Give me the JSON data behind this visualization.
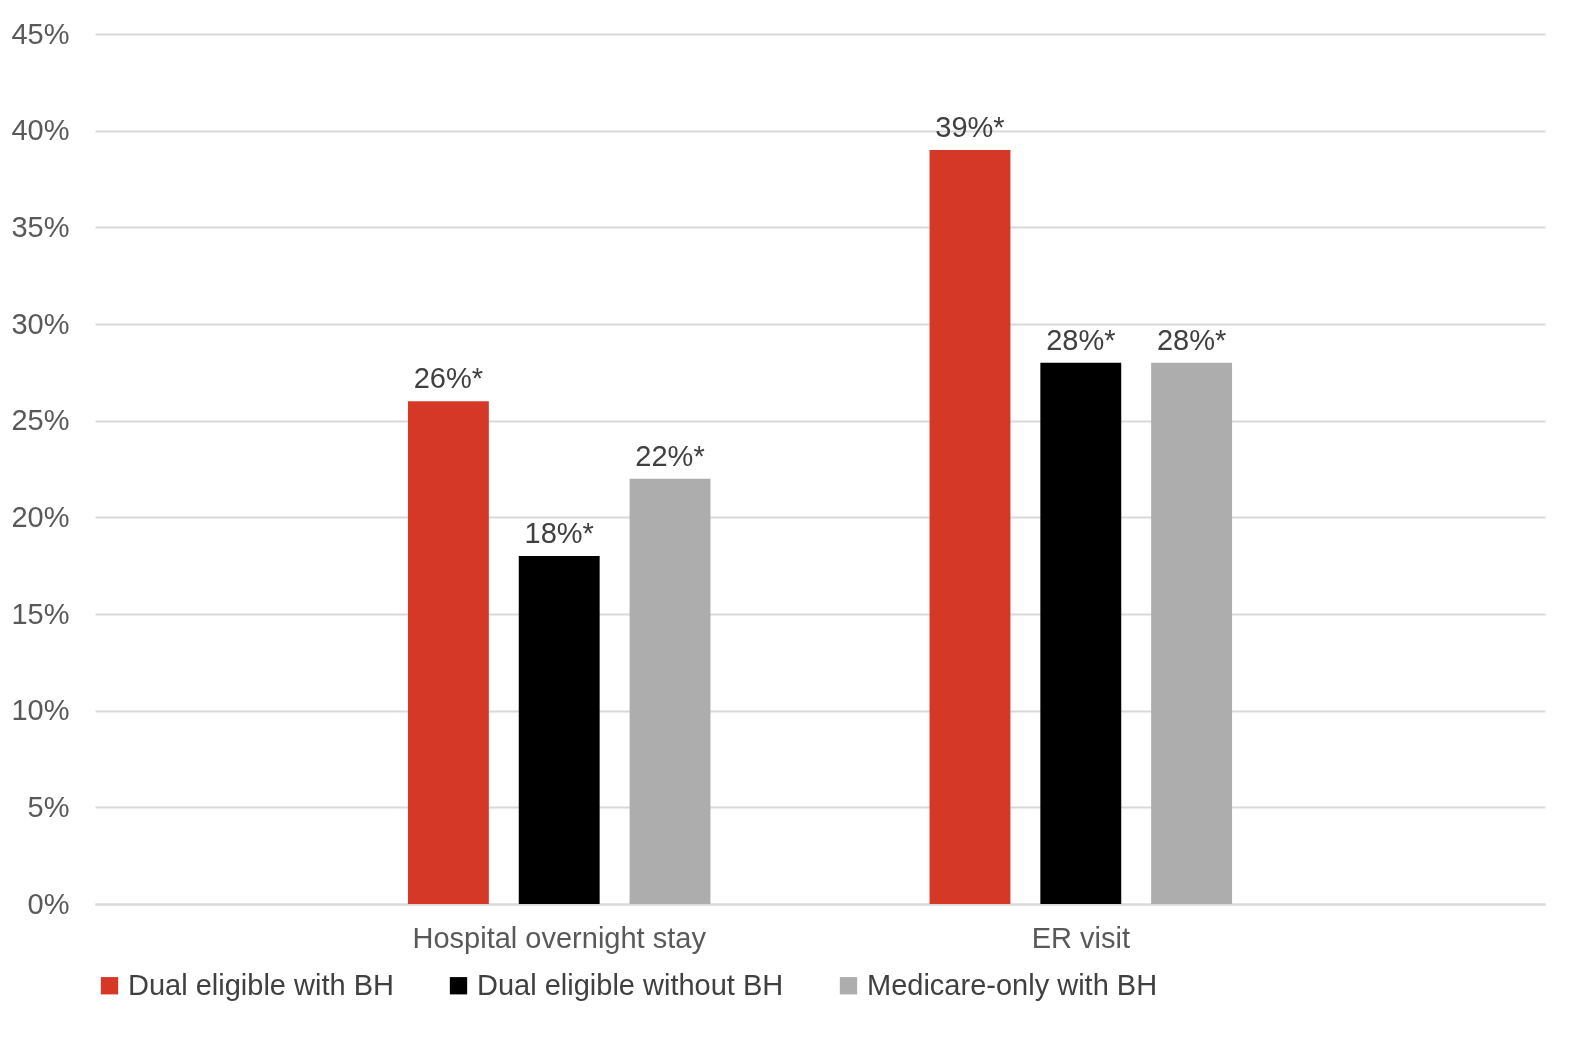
{
  "chart_data": {
    "type": "bar",
    "categories": [
      "Hospital overnight stay",
      "ER visit"
    ],
    "series": [
      {
        "name": "Dual eligible with BH",
        "color": "#d63827",
        "values": [
          26,
          39
        ],
        "value_labels": [
          "26%*",
          "39%*"
        ]
      },
      {
        "name": "Dual eligible without BH",
        "color": "#000000",
        "values": [
          18,
          28
        ],
        "value_labels": [
          "18%*",
          "28%*"
        ]
      },
      {
        "name": "Medicare-only with BH",
        "color": "#adadad",
        "values": [
          22,
          28
        ],
        "value_labels": [
          "22%*",
          "28%*"
        ]
      }
    ],
    "ylim": [
      0,
      45
    ],
    "yticks": [
      {
        "value": 0,
        "label": "0%"
      },
      {
        "value": 5,
        "label": "5%"
      },
      {
        "value": 10,
        "label": "10%"
      },
      {
        "value": 15,
        "label": "15%"
      },
      {
        "value": 20,
        "label": "20%"
      },
      {
        "value": 25,
        "label": "25%"
      },
      {
        "value": 30,
        "label": "30%"
      },
      {
        "value": 35,
        "label": "35%"
      },
      {
        "value": 40,
        "label": "40%"
      },
      {
        "value": 45,
        "label": "45%"
      }
    ],
    "grid": "y",
    "legend": "bottom"
  }
}
